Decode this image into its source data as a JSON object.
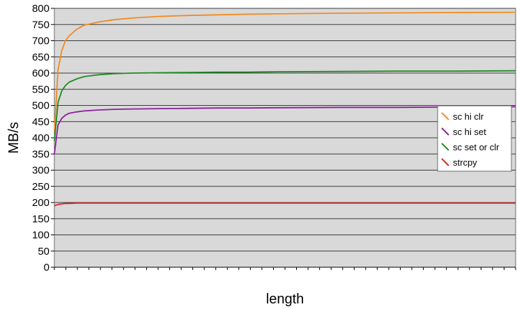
{
  "chart_data": {
    "type": "line",
    "title": "",
    "xlabel": "length",
    "ylabel": "MB/s",
    "ylim": [
      0,
      800
    ],
    "y_ticks": [
      0,
      50,
      100,
      150,
      200,
      250,
      300,
      350,
      400,
      450,
      500,
      550,
      600,
      650,
      700,
      750,
      800
    ],
    "grid": true,
    "legend_position": "right",
    "x_range": [
      64,
      2048
    ],
    "x": [
      64,
      80,
      96,
      112,
      128,
      160,
      192,
      256,
      320,
      400,
      512,
      640,
      768,
      896,
      1024,
      1280,
      1536,
      1792,
      2048
    ],
    "series": [
      {
        "name": "sc hi clr",
        "color": "#f28a1e",
        "values": [
          420,
          610,
          670,
          700,
          715,
          735,
          748,
          758,
          765,
          770,
          775,
          778,
          780,
          782,
          783,
          785,
          786,
          787,
          788
        ]
      },
      {
        "name": "sc hi set",
        "color": "#8a1e9a",
        "values": [
          350,
          440,
          460,
          470,
          476,
          480,
          483,
          486,
          488,
          489,
          490,
          491,
          492,
          492,
          493,
          494,
          494,
          495,
          496
        ]
      },
      {
        "name": "sc set or clr",
        "color": "#1e8a1e",
        "values": [
          390,
          510,
          545,
          562,
          572,
          582,
          589,
          595,
          598,
          600,
          601,
          602,
          603,
          603,
          604,
          605,
          606,
          606,
          607
        ]
      },
      {
        "name": "strcpy",
        "color": "#e8201e",
        "values": [
          190,
          194,
          196,
          197,
          197,
          198,
          198,
          198,
          198,
          198,
          198,
          198,
          198,
          198,
          198,
          198,
          198,
          198,
          198
        ]
      }
    ]
  }
}
